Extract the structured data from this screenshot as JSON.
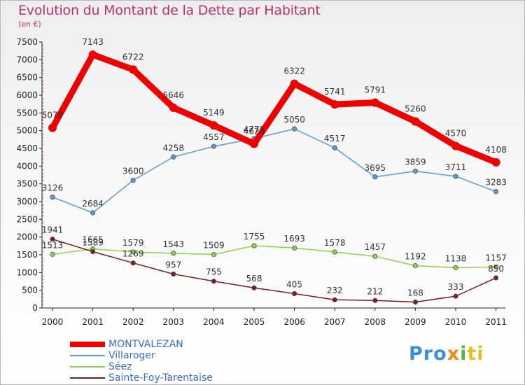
{
  "title": "Evolution du Montant de la Dette par Habitant",
  "subtitle": "(en €)",
  "logo": {
    "p1": "Pro",
    "p2": "x",
    "p3": "i",
    "p4": "ti"
  },
  "chart_data": {
    "type": "line",
    "title": "Evolution du Montant de la Dette par Habitant",
    "ylabel": "(en €)",
    "xlabel": "",
    "ylim": [
      0,
      7500
    ],
    "yticks": [
      0,
      500,
      1000,
      1500,
      2000,
      2500,
      3000,
      3500,
      4000,
      4500,
      5000,
      5500,
      6000,
      6500,
      7000,
      7500
    ],
    "categories": [
      "2000",
      "2001",
      "2002",
      "2003",
      "2004",
      "2005",
      "2006",
      "2007",
      "2008",
      "2009",
      "2010",
      "2011"
    ],
    "grid": false,
    "legend_position": "bottom-left",
    "series": [
      {
        "name": "MONTVALEZAN",
        "color": "#ee0000",
        "thick": true,
        "values": [
          5079,
          7143,
          6722,
          5646,
          5149,
          4628,
          6322,
          5741,
          5791,
          5260,
          4570,
          4108
        ],
        "labels": [
          "5079",
          "7143",
          "6722",
          "5646",
          "5149",
          "4628",
          "6322",
          "5741",
          "5791",
          "5260",
          "4570",
          "4108"
        ]
      },
      {
        "name": "Villaroger",
        "color": "#5b9bd5",
        "thick": false,
        "values": [
          3126,
          2684,
          3600,
          4258,
          4557,
          4778,
          5050,
          4517,
          3695,
          3859,
          3711,
          3283
        ],
        "labels": [
          "3126",
          "2684",
          "3600",
          "4258",
          "4557",
          "4778",
          "5050",
          "4517",
          "3695",
          "3859",
          "3711",
          "3283"
        ]
      },
      {
        "name": "Séez",
        "color": "#8fd24a",
        "thick": false,
        "values": [
          1513,
          1665,
          1579,
          1543,
          1509,
          1755,
          1693,
          1578,
          1457,
          1192,
          1138,
          1157
        ],
        "labels": [
          "1513",
          "1665",
          "1579",
          "1543",
          "1509",
          "1755",
          "1693",
          "1578",
          "1457",
          "1192",
          "1138",
          "1157"
        ]
      },
      {
        "name": "Sainte-Foy-Tarentaise",
        "color": "#7a1e1e",
        "thick": false,
        "values": [
          1941,
          1589,
          1269,
          957,
          755,
          568,
          405,
          232,
          212,
          168,
          333,
          850
        ],
        "labels": [
          "1941",
          "1589",
          "1269",
          "957",
          "755",
          "568",
          "405",
          "232",
          "212",
          "168",
          "333",
          "850"
        ]
      }
    ]
  }
}
